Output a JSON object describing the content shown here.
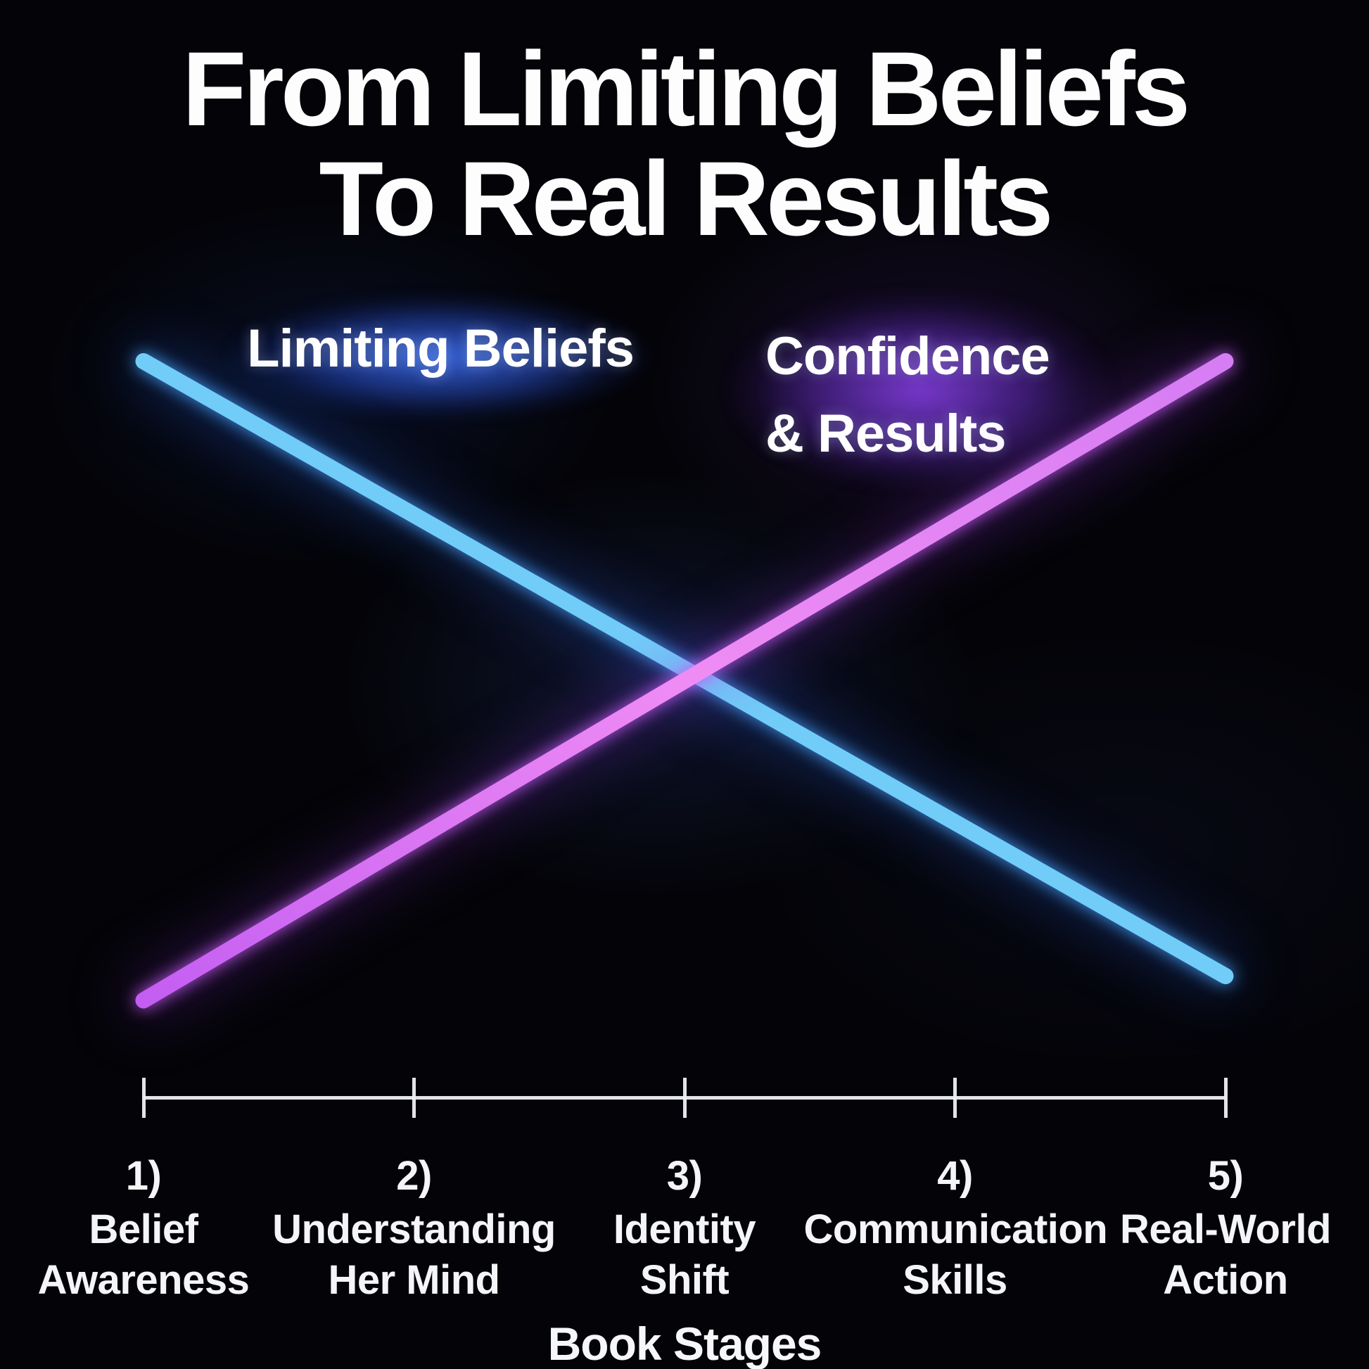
{
  "header": {
    "line1": "From Limiting Beliefs",
    "line2": "To Real Results"
  },
  "legend": {
    "limiting": {
      "label": "Limiting Beliefs",
      "glow_color": "#2e56c4",
      "text_color": "#ffffff"
    },
    "confidence": {
      "line1": "Confidence",
      "line2": "& Results",
      "glow_color": "#7a3fd0",
      "text_color": "#ffffff"
    }
  },
  "x_axis": {
    "label": "Book Stages",
    "stages": [
      {
        "num": "1)",
        "lines": [
          "Belief",
          "Awareness"
        ]
      },
      {
        "num": "2)",
        "lines": [
          "Understanding",
          "Her Mind"
        ]
      },
      {
        "num": "3)",
        "lines": [
          "Identity",
          "Shift"
        ]
      },
      {
        "num": "4)",
        "lines": [
          "Communication",
          "Skills"
        ]
      },
      {
        "num": "5)",
        "lines": [
          "Real-World",
          "Action"
        ]
      }
    ]
  },
  "chart_data": {
    "type": "line",
    "title": "From Limiting Beliefs To Real Results",
    "xlabel": "Book Stages",
    "ylabel": "",
    "categories": [
      "1) Belief Awareness",
      "2) Understanding Her Mind",
      "3) Identity Shift",
      "4) Communication Skills",
      "5) Real-World Action"
    ],
    "series": [
      {
        "name": "Limiting Beliefs",
        "color": "#72ccf8",
        "values": [
          91,
          72,
          53,
          34,
          15
        ]
      },
      {
        "name": "Confidence & Results",
        "color": "#d678f3",
        "values": [
          12,
          32,
          52,
          71,
          91
        ]
      }
    ],
    "ylim": [
      0,
      100
    ],
    "grid": false,
    "y_axis_shown": false,
    "legend_position": "top-inline"
  },
  "colors": {
    "background": "#040408",
    "axis": "#eef0f5",
    "blue_glow": "#2563eb",
    "purple_glow": "#9333ea",
    "purple_gradient": [
      "#c45ef2",
      "#ef8cf4",
      "#d67df4"
    ]
  }
}
